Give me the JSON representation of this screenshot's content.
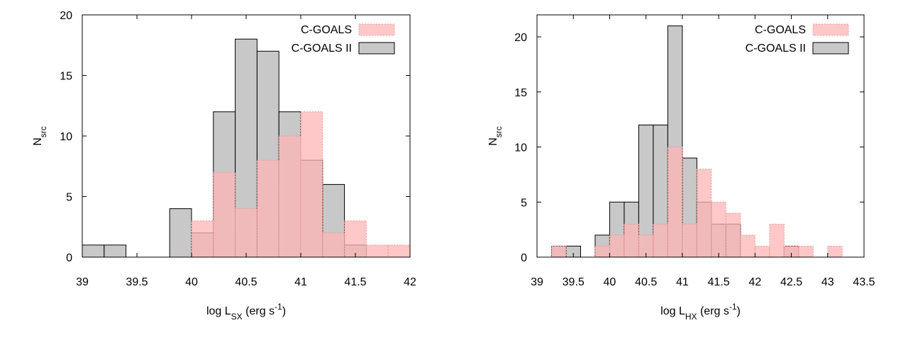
{
  "chart_data": [
    {
      "type": "bar",
      "subtype": "overlaid-histogram",
      "title": "",
      "xlabel": {
        "prefix": "log L",
        "sub": "SX",
        "unit_open": " (erg s",
        "sup": "-1",
        "unit_close": ")"
      },
      "ylabel": {
        "main": "N",
        "sub": "src"
      },
      "xlim": [
        39,
        42
      ],
      "ylim": [
        0,
        20
      ],
      "xticks": [
        "39",
        "39.5",
        "40",
        "40.5",
        "41",
        "41.5",
        "42"
      ],
      "yticks": [
        "0",
        "5",
        "10",
        "15",
        "20"
      ],
      "bin_width": 0.2,
      "grid": false,
      "legend_position": "top-right",
      "series": [
        {
          "name": "C-GOALS II",
          "color": "#c8c8c8",
          "bins": [
            {
              "x0": 39.0,
              "value": 1
            },
            {
              "x0": 39.2,
              "value": 1
            },
            {
              "x0": 39.8,
              "value": 4
            },
            {
              "x0": 40.0,
              "value": 2
            },
            {
              "x0": 40.2,
              "value": 12
            },
            {
              "x0": 40.4,
              "value": 18
            },
            {
              "x0": 40.6,
              "value": 17
            },
            {
              "x0": 40.8,
              "value": 12
            },
            {
              "x0": 41.0,
              "value": 8
            },
            {
              "x0": 41.2,
              "value": 6
            },
            {
              "x0": 41.4,
              "value": 1
            }
          ]
        },
        {
          "name": "C-GOALS",
          "color": "#ffb6b6",
          "bins": [
            {
              "x0": 40.0,
              "value": 3
            },
            {
              "x0": 40.2,
              "value": 7
            },
            {
              "x0": 40.4,
              "value": 4
            },
            {
              "x0": 40.6,
              "value": 8
            },
            {
              "x0": 40.8,
              "value": 10
            },
            {
              "x0": 41.0,
              "value": 12
            },
            {
              "x0": 41.2,
              "value": 2
            },
            {
              "x0": 41.4,
              "value": 3
            },
            {
              "x0": 41.6,
              "value": 1
            },
            {
              "x0": 41.8,
              "value": 1
            }
          ]
        }
      ]
    },
    {
      "type": "bar",
      "subtype": "overlaid-histogram",
      "title": "",
      "xlabel": {
        "prefix": "log L",
        "sub": "HX",
        "unit_open": " (erg s",
        "sup": "-1",
        "unit_close": ")"
      },
      "ylabel": {
        "main": "N",
        "sub": "src"
      },
      "xlim": [
        39,
        43.5
      ],
      "ylim": [
        0,
        22
      ],
      "xticks": [
        "39",
        "39.5",
        "40",
        "40.5",
        "41",
        "41.5",
        "42",
        "42.5",
        "43",
        "43.5"
      ],
      "yticks": [
        "0",
        "5",
        "10",
        "15",
        "20"
      ],
      "bin_width": 0.2,
      "grid": false,
      "legend_position": "top-right",
      "series": [
        {
          "name": "C-GOALS II",
          "color": "#c8c8c8",
          "bins": [
            {
              "x0": 39.2,
              "value": 1
            },
            {
              "x0": 39.4,
              "value": 1
            },
            {
              "x0": 39.8,
              "value": 2
            },
            {
              "x0": 40.0,
              "value": 5
            },
            {
              "x0": 40.2,
              "value": 5
            },
            {
              "x0": 40.4,
              "value": 12
            },
            {
              "x0": 40.6,
              "value": 12
            },
            {
              "x0": 40.8,
              "value": 21
            },
            {
              "x0": 41.0,
              "value": 9
            },
            {
              "x0": 41.2,
              "value": 5
            },
            {
              "x0": 41.4,
              "value": 3
            },
            {
              "x0": 41.6,
              "value": 3
            },
            {
              "x0": 42.4,
              "value": 1
            }
          ]
        },
        {
          "name": "C-GOALS",
          "color": "#ffb6b6",
          "bins": [
            {
              "x0": 39.2,
              "value": 1
            },
            {
              "x0": 39.8,
              "value": 1
            },
            {
              "x0": 40.0,
              "value": 2
            },
            {
              "x0": 40.2,
              "value": 3
            },
            {
              "x0": 40.4,
              "value": 2
            },
            {
              "x0": 40.6,
              "value": 3
            },
            {
              "x0": 40.8,
              "value": 10
            },
            {
              "x0": 41.0,
              "value": 3
            },
            {
              "x0": 41.2,
              "value": 8
            },
            {
              "x0": 41.4,
              "value": 5
            },
            {
              "x0": 41.6,
              "value": 4
            },
            {
              "x0": 41.8,
              "value": 2
            },
            {
              "x0": 42.0,
              "value": 1
            },
            {
              "x0": 42.2,
              "value": 3
            },
            {
              "x0": 42.4,
              "value": 1
            },
            {
              "x0": 42.6,
              "value": 1
            },
            {
              "x0": 43.0,
              "value": 1
            }
          ]
        }
      ]
    }
  ]
}
